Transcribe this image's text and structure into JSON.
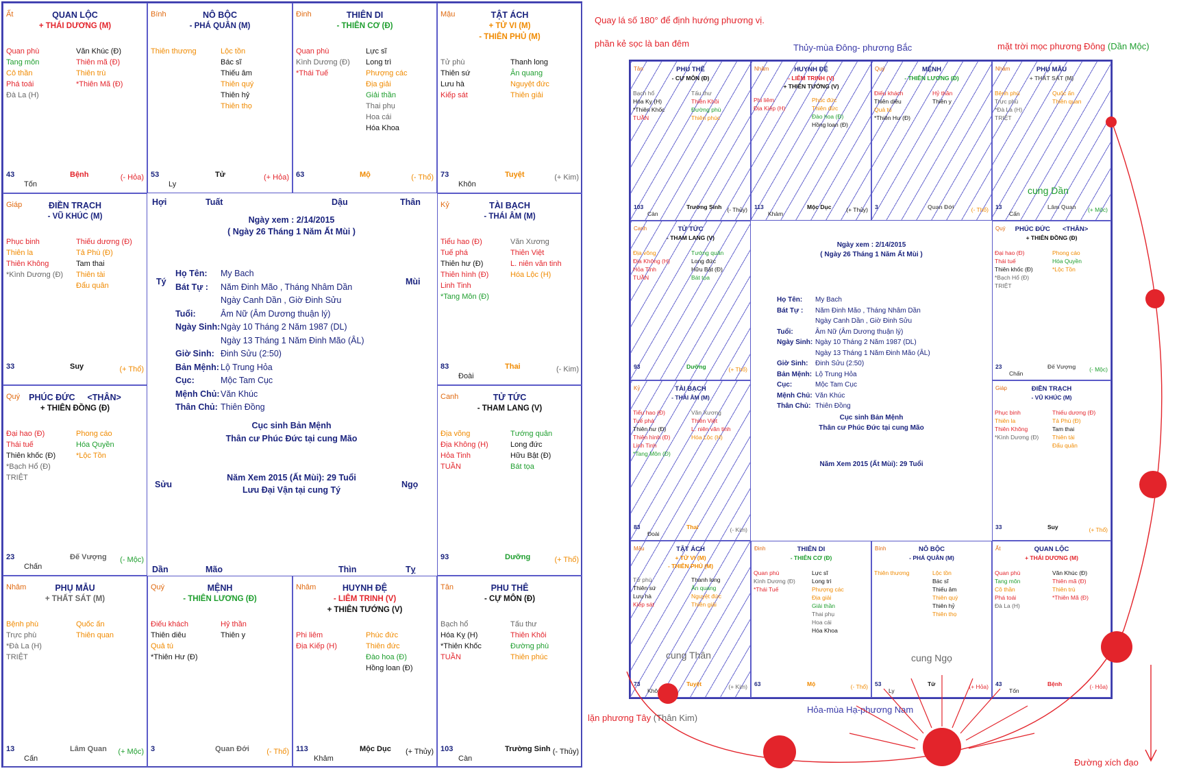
{
  "left": {
    "cells": [
      {
        "id": "quan-loc",
        "row": 0,
        "col": 0,
        "can": "Ất",
        "name": "QUAN LỘC",
        "extra": "",
        "stars": [
          {
            "t": "+ THÁI DƯƠNG (M)",
            "c": "red"
          }
        ],
        "a": [
          {
            "t": "Quan phù",
            "c": "red"
          },
          {
            "t": "Tang môn",
            "c": "green"
          },
          {
            "t": "Cô thần",
            "c": "orange"
          },
          {
            "t": "Phá toái",
            "c": "red"
          },
          {
            "t": "Đà La (H)",
            "c": "gray"
          }
        ],
        "b": [
          {
            "t": "Văn Khúc (Đ)",
            "c": "black"
          },
          {
            "t": "Thiên mã (Đ)",
            "c": "red"
          },
          {
            "t": "Thiên trù",
            "c": "orange"
          },
          {
            "t": "*Thiên Mã (Đ)",
            "c": "red"
          }
        ],
        "age": "43",
        "tri": "Tốn",
        "stage": "Bệnh",
        "stagec": "red",
        "hanh": "(- Hỏa)",
        "hanhc": "red"
      },
      {
        "id": "no-boc",
        "row": 0,
        "col": 1,
        "can": "Bính",
        "name": "NÔ BỘC",
        "extra": "",
        "stars": [
          {
            "t": "- PHÁ QUÂN (M)",
            "c": "blue"
          }
        ],
        "a": [
          {
            "t": "Thiên thương",
            "c": "orange"
          }
        ],
        "b": [
          {
            "t": "Lộc tồn",
            "c": "orange"
          },
          {
            "t": "Bác sĩ",
            "c": "black"
          },
          {
            "t": "Thiếu âm",
            "c": "black"
          },
          {
            "t": "Thiên quý",
            "c": "orange"
          },
          {
            "t": "Thiên hỷ",
            "c": "black"
          },
          {
            "t": "Thiên thọ",
            "c": "orange"
          }
        ],
        "age": "53",
        "tri": "Ly",
        "stage": "Tử",
        "stagec": "black",
        "hanh": "(+ Hỏa)",
        "hanhc": "red"
      },
      {
        "id": "thien-di",
        "row": 0,
        "col": 2,
        "can": "Đinh",
        "name": "THIÊN DI",
        "extra": "",
        "stars": [
          {
            "t": "- THIÊN CƠ (Đ)",
            "c": "green"
          }
        ],
        "a": [
          {
            "t": "Quan phù",
            "c": "red"
          },
          {
            "t": "Kình Dương (Đ)",
            "c": "gray"
          },
          {
            "t": "*Thái Tuế",
            "c": "red"
          }
        ],
        "b": [
          {
            "t": "Lực sĩ",
            "c": "black"
          },
          {
            "t": "Long trì",
            "c": "black"
          },
          {
            "t": "Phượng các",
            "c": "orange"
          },
          {
            "t": "Địa giải",
            "c": "orange"
          },
          {
            "t": "Giải thần",
            "c": "green"
          },
          {
            "t": "Thai phụ",
            "c": "gray"
          },
          {
            "t": "Hoa cái",
            "c": "gray"
          },
          {
            "t": "Hóa Khoa",
            "c": "black"
          }
        ],
        "age": "63",
        "tri": "",
        "stage": "Mộ",
        "stagec": "orange",
        "hanh": "(- Thổ)",
        "hanhc": "orange"
      },
      {
        "id": "tat-ach",
        "row": 0,
        "col": 3,
        "can": "Mậu",
        "name": "TẬT ÁCH",
        "extra": "",
        "stars": [
          {
            "t": "+ TỬ VI (M)",
            "c": "orange"
          },
          {
            "t": "- THIÊN PHỦ (M)",
            "c": "orange"
          }
        ],
        "a": [
          {
            "t": "Tử phù",
            "c": "gray"
          },
          {
            "t": "Thiên sứ",
            "c": "black"
          },
          {
            "t": "Lưu hà",
            "c": "black"
          },
          {
            "t": "Kiếp sát",
            "c": "red"
          }
        ],
        "b": [
          {
            "t": "Thanh long",
            "c": "black"
          },
          {
            "t": "Ân quang",
            "c": "green"
          },
          {
            "t": "Nguyệt đức",
            "c": "orange"
          },
          {
            "t": "Thiên giải",
            "c": "orange"
          }
        ],
        "age": "73",
        "tri": "Khôn",
        "stage": "Tuyệt",
        "stagec": "orange",
        "hanh": "(+ Kim)",
        "hanhc": "gray"
      },
      {
        "id": "dien-trach",
        "row": 1,
        "col": 0,
        "can": "Giáp",
        "name": "ĐIỀN TRẠCH",
        "extra": "",
        "stars": [
          {
            "t": "- VŨ KHÚC (M)",
            "c": "blue"
          }
        ],
        "a": [
          {
            "t": "Phục binh",
            "c": "red"
          },
          {
            "t": "Thiên la",
            "c": "orange"
          },
          {
            "t": "Thiên Không",
            "c": "red"
          },
          {
            "t": "*Kình Dương (Đ)",
            "c": "gray"
          }
        ],
        "b": [
          {
            "t": "Thiếu dương (Đ)",
            "c": "red"
          },
          {
            "t": "Tả Phù (Đ)",
            "c": "orange"
          },
          {
            "t": "Tam thai",
            "c": "black"
          },
          {
            "t": "Thiên tài",
            "c": "orange"
          },
          {
            "t": "Đẩu quân",
            "c": "orange"
          }
        ],
        "age": "33",
        "tri": "",
        "stage": "Suy",
        "stagec": "black",
        "hanh": "(+ Thổ)",
        "hanhc": "orange"
      },
      {
        "id": "tai-bach",
        "row": 1,
        "col": 3,
        "can": "Kỷ",
        "name": "TÀI BẠCH",
        "extra": "",
        "stars": [
          {
            "t": "- THÁI ÂM (M)",
            "c": "blue"
          }
        ],
        "a": [
          {
            "t": "Tiểu hao (Đ)",
            "c": "red"
          },
          {
            "t": "Tuế phá",
            "c": "red"
          },
          {
            "t": "Thiên hư (Đ)",
            "c": "black"
          },
          {
            "t": "Thiên hình (Đ)",
            "c": "red"
          },
          {
            "t": "Linh Tinh",
            "c": "red"
          },
          {
            "t": "*Tang Môn (Đ)",
            "c": "green"
          }
        ],
        "b": [
          {
            "t": "Văn Xương",
            "c": "gray"
          },
          {
            "t": "Thiên Việt",
            "c": "red"
          },
          {
            "t": "L. niên văn tinh",
            "c": "red"
          },
          {
            "t": "Hóa Lộc (H)",
            "c": "orange"
          }
        ],
        "age": "83",
        "tri": "Đoài",
        "stage": "Thai",
        "stagec": "orange",
        "hanh": "(- Kim)",
        "hanhc": "gray"
      },
      {
        "id": "phuc-duc",
        "row": 2,
        "col": 0,
        "can": "Quý",
        "name": "PHÚC ĐỨC",
        "extra": "<THÂN>",
        "stars": [
          {
            "t": "+ THIÊN ĐỒNG (Đ)",
            "c": "black"
          }
        ],
        "a": [
          {
            "t": "Đại hao (Đ)",
            "c": "red"
          },
          {
            "t": "Thái tuế",
            "c": "red"
          },
          {
            "t": "Thiên khốc (Đ)",
            "c": "black"
          },
          {
            "t": "*Bạch Hổ (Đ)",
            "c": "gray"
          },
          {
            "t": "TRIỆT",
            "c": "gray"
          }
        ],
        "b": [
          {
            "t": "Phong cáo",
            "c": "orange"
          },
          {
            "t": "Hóa Quyền",
            "c": "green"
          },
          {
            "t": "*Lộc Tồn",
            "c": "orange"
          }
        ],
        "age": "23",
        "tri": "Chấn",
        "stage": "Đế Vượng",
        "stagec": "gray",
        "hanh": "(- Mộc)",
        "hanhc": "green"
      },
      {
        "id": "tu-tuc",
        "row": 2,
        "col": 3,
        "can": "Canh",
        "name": "TỬ TỨC",
        "extra": "",
        "stars": [
          {
            "t": "- THAM LANG (V)",
            "c": "black"
          }
        ],
        "a": [
          {
            "t": "Địa võng",
            "c": "orange"
          },
          {
            "t": "Địa Không (H)",
            "c": "red"
          },
          {
            "t": "Hỏa Tinh",
            "c": "red"
          },
          {
            "t": "TUẦN",
            "c": "red"
          }
        ],
        "b": [
          {
            "t": "Tướng quân",
            "c": "green"
          },
          {
            "t": "Long đức",
            "c": "black"
          },
          {
            "t": "Hữu Bật (Đ)",
            "c": "black"
          },
          {
            "t": "Bát tọa",
            "c": "green"
          }
        ],
        "age": "93",
        "tri": "",
        "stage": "Dưỡng",
        "stagec": "green",
        "hanh": "(+ Thổ)",
        "hanhc": "orange"
      },
      {
        "id": "phu-mau",
        "row": 3,
        "col": 0,
        "can": "Nhâm",
        "name": "PHỤ MẪU",
        "extra": "",
        "stars": [
          {
            "t": "+ THẤT SÁT (M)",
            "c": "gray"
          }
        ],
        "a": [
          {
            "t": "Bệnh phù",
            "c": "orange"
          },
          {
            "t": "Trực phù",
            "c": "gray"
          },
          {
            "t": "*Đà La (H)",
            "c": "gray"
          },
          {
            "t": "TRIỆT",
            "c": "gray"
          }
        ],
        "b": [
          {
            "t": "Quốc ấn",
            "c": "orange"
          },
          {
            "t": "Thiên quan",
            "c": "orange"
          }
        ],
        "age": "13",
        "tri": "Cấn",
        "stage": "Lâm Quan",
        "stagec": "gray",
        "hanh": "(+ Mộc)",
        "hanhc": "green"
      },
      {
        "id": "menh",
        "row": 3,
        "col": 1,
        "can": "Quý",
        "name": "MỆNH",
        "extra": "",
        "stars": [
          {
            "t": "- THIÊN LƯƠNG (Đ)",
            "c": "green"
          }
        ],
        "a": [
          {
            "t": "Điếu khách",
            "c": "red"
          },
          {
            "t": "Thiên diêu",
            "c": "black"
          },
          {
            "t": "Quả tú",
            "c": "orange"
          },
          {
            "t": "*Thiên Hư (Đ)",
            "c": "black"
          }
        ],
        "b": [
          {
            "t": "Hỷ thần",
            "c": "red"
          },
          {
            "t": "Thiên y",
            "c": "black"
          }
        ],
        "age": "3",
        "tri": "",
        "stage": "Quan Đới",
        "stagec": "gray",
        "hanh": "(- Thổ)",
        "hanhc": "orange"
      },
      {
        "id": "huynh-de",
        "row": 3,
        "col": 2,
        "can": "Nhâm",
        "name": "HUYNH ĐỆ",
        "extra": "",
        "stars": [
          {
            "t": "- LIÊM TRINH (V)",
            "c": "red"
          },
          {
            "t": "+ THIÊN TƯỚNG (V)",
            "c": "black"
          }
        ],
        "a": [
          {
            "t": "Phi liêm",
            "c": "red"
          },
          {
            "t": "Địa Kiếp (H)",
            "c": "red"
          }
        ],
        "b": [
          {
            "t": "Phúc đức",
            "c": "orange"
          },
          {
            "t": "Thiên đức",
            "c": "orange"
          },
          {
            "t": "Đào hoa (Đ)",
            "c": "green"
          },
          {
            "t": "Hồng loan (Đ)",
            "c": "black"
          }
        ],
        "age": "113",
        "tri": "Khảm",
        "stage": "Mộc Dục",
        "stagec": "black",
        "hanh": "(+ Thủy)",
        "hanhc": "black"
      },
      {
        "id": "phu-the",
        "row": 3,
        "col": 3,
        "can": "Tân",
        "name": "PHU THÊ",
        "extra": "",
        "stars": [
          {
            "t": "- CỰ MÔN (Đ)",
            "c": "black"
          }
        ],
        "a": [
          {
            "t": "Bạch hổ",
            "c": "gray"
          },
          {
            "t": "Hóa Kỵ (H)",
            "c": "black"
          },
          {
            "t": "*Thiên Khốc",
            "c": "black"
          },
          {
            "t": "TUẦN",
            "c": "red"
          }
        ],
        "b": [
          {
            "t": "Tấu thư",
            "c": "gray"
          },
          {
            "t": "Thiên Khôi",
            "c": "red"
          },
          {
            "t": "Đường phù",
            "c": "green"
          },
          {
            "t": "Thiên phúc",
            "c": "orange"
          }
        ],
        "age": "103",
        "tri": "Càn",
        "stage": "Trường Sinh",
        "stagec": "black",
        "hanh": "(- Thủy)",
        "hanhc": "black"
      }
    ],
    "branches": {
      "hoi": "Hợi",
      "tuat": "Tuất",
      "dau": "Dậu",
      "than": "Thân",
      "ty_top": "Tý",
      "mui": "Mùi",
      "suu": "Sửu",
      "ngo": "Ngọ",
      "dan": "Dần",
      "mao": "Mão",
      "thin": "Thìn",
      "ty_bottom": "Tỵ"
    },
    "center": {
      "title1": "Ngày xem : 2/14/2015",
      "title2": "( Ngày 26 Tháng 1 Năm Ất Mùi )",
      "rows": [
        {
          "k": "Họ Tên:",
          "v": "My Bach"
        },
        {
          "k": "Bát Tự :",
          "v": "Năm Đinh Mão , Tháng Nhâm Dần"
        },
        {
          "k": "",
          "v": "Ngày Canh Dần , Giờ Đinh Sửu"
        },
        {
          "k": "Tuổi:",
          "v": "Âm Nữ (Âm Dương thuận lý)"
        },
        {
          "k": "Ngày Sinh:",
          "v": "Ngày 10 Tháng 2 Năm 1987 (DL)"
        },
        {
          "k": "",
          "v": "Ngày 13 Tháng 1 Năm Đinh Mão (ÂL)"
        },
        {
          "k": "Giờ Sinh:",
          "v": "Đinh Sửu (2:50)"
        },
        {
          "k": "Bản Mệnh:",
          "v": "Lộ Trung Hỏa"
        },
        {
          "k": "Cục:",
          "v": "Mộc Tam Cục"
        },
        {
          "k": "Mệnh Chủ:",
          "v": "Văn Khúc"
        },
        {
          "k": "Thân Chủ:",
          "v": "Thiên Đồng"
        }
      ],
      "line1": "Cục sinh Bản Mệnh",
      "line2": "Thân cư Phúc Đức tại cung Mão",
      "line3": "Năm Xem 2015 (Ất Mùi): 29 Tuổi",
      "line4": "Lưu Đại Vận tại cung Tý"
    }
  },
  "right": {
    "notes": {
      "rotate": "Quay lá số 180° để định hướng phương vị.",
      "hatch": "phần kẻ sọc là ban đêm",
      "north": "Thủy-mùa Đông- phương Bắc",
      "east_prefix": "mặt trời mọc phương Đông",
      "east_suffix": "(Dần Mộc)",
      "south": "Hỏa-mùa Hạ-phương Nam",
      "west_prefix": "lặn phương Tây",
      "west_suffix": "(Thân Kim)",
      "equator": "Đường xích đạo",
      "cung_dan": "cung Dần",
      "cung_than": "cung Thân",
      "cung_ngo": "cung Ngọ"
    },
    "cells": [
      {
        "id": "phu-the",
        "row": 0,
        "col": 0,
        "hatched": true
      },
      {
        "id": "huynh-de",
        "row": 0,
        "col": 1,
        "hatched": true
      },
      {
        "id": "menh",
        "row": 0,
        "col": 2,
        "hatched": true
      },
      {
        "id": "phu-mau",
        "row": 0,
        "col": 3,
        "hatched": true
      },
      {
        "id": "tu-tuc",
        "row": 1,
        "col": 0,
        "hatched": true
      },
      {
        "id": "phuc-duc",
        "row": 1,
        "col": 3,
        "hatched": false
      },
      {
        "id": "tai-bach",
        "row": 2,
        "col": 0,
        "hatched": true
      },
      {
        "id": "dien-trach",
        "row": 2,
        "col": 3,
        "hatched": false
      },
      {
        "id": "tat-ach",
        "row": 3,
        "col": 0,
        "hatched": true
      },
      {
        "id": "thien-di",
        "row": 3,
        "col": 1,
        "hatched": false
      },
      {
        "id": "no-boc",
        "row": 3,
        "col": 2,
        "hatched": false
      },
      {
        "id": "quan-loc",
        "row": 3,
        "col": 3,
        "hatched": false
      }
    ],
    "colors": {
      "arc": "#e3242b",
      "sun": "#e3242b",
      "hatch": "#6b6bd0",
      "frame": "#3a3aa8"
    }
  }
}
